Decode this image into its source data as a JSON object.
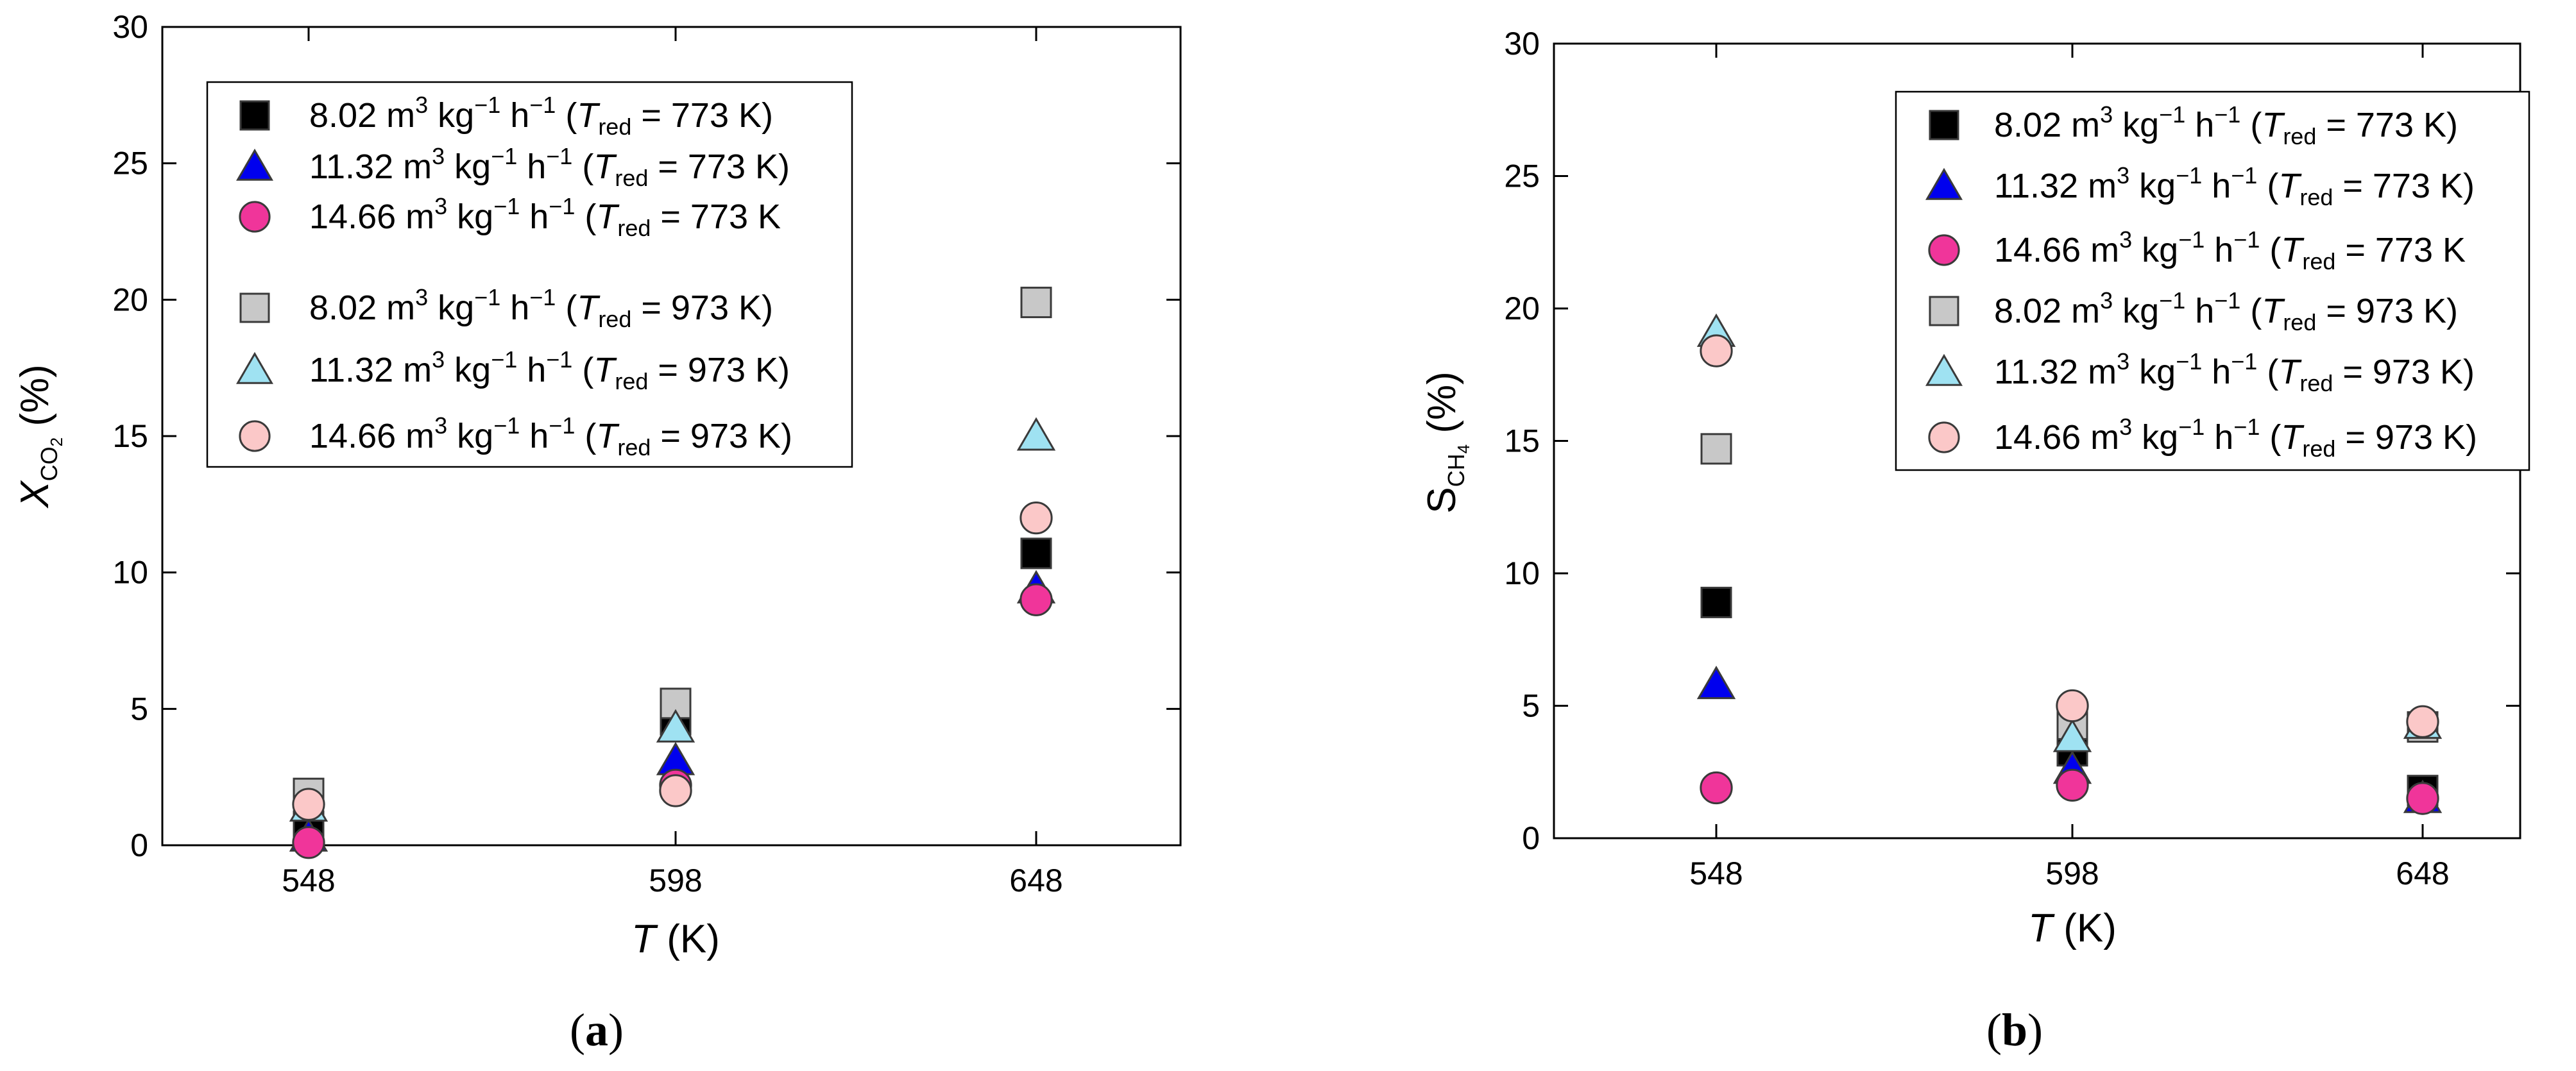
{
  "chart_data": [
    {
      "type": "scatter",
      "panel": "a",
      "caption_letter": "a",
      "ylabel": {
        "var": "X",
        "sub": "CO",
        "sub2": "2",
        "unit": "(%)"
      },
      "xlabel": {
        "var": "T",
        "unit": "(K)"
      },
      "categories": [
        "548",
        "598",
        "648"
      ],
      "yticks": [
        "0",
        "5",
        "10",
        "15",
        "20",
        "25",
        "30"
      ],
      "ylim": [
        0,
        30
      ],
      "series": [
        {
          "name": "8.02 m3 kg-1 h-1 (Tred = 773 K)",
          "flow": "8.02",
          "tred": "773 K)",
          "marker": "square",
          "fill": "#000000",
          "values": [
            0.7,
            4.6,
            10.7
          ]
        },
        {
          "name": "11.32 m3 kg-1 h-1 (Tred = 773 K)",
          "flow": "11.32",
          "tred": "773 K)",
          "marker": "triangle",
          "fill": "#0000ee",
          "values": [
            0.3,
            3.1,
            9.4
          ]
        },
        {
          "name": "14.66 m3 kg-1 h-1 (Tred = 773 K",
          "flow": "14.66",
          "tred": "773 K",
          "marker": "circle",
          "fill": "#f0359a",
          "values": [
            0.1,
            2.2,
            9.0
          ]
        },
        {
          "name": "8.02 m3 kg-1 h-1 (Tred = 973 K)",
          "flow": "8.02",
          "tred": "973 K)",
          "marker": "square",
          "fill": "#c8c8c8",
          "values": [
            1.9,
            5.2,
            19.9
          ]
        },
        {
          "name": "11.32 m3 kg-1 h-1 (Tred = 973 K)",
          "flow": "11.32",
          "tred": "973 K)",
          "marker": "triangle",
          "fill": "#9fe2f2",
          "values": [
            1.4,
            4.3,
            15.0
          ]
        },
        {
          "name": "14.66 m3 kg-1 h-1 (Tred = 973 K)",
          "flow": "14.66",
          "tred": "973 K)",
          "marker": "circle",
          "fill": "#fbc8c8",
          "values": [
            1.5,
            2.0,
            12.0
          ]
        }
      ]
    },
    {
      "type": "scatter",
      "panel": "b",
      "caption_letter": "b",
      "ylabel": {
        "var": "S",
        "sub": "CH",
        "sub2": "4",
        "unit": "(%)"
      },
      "xlabel": {
        "var": "T",
        "unit": "(K)"
      },
      "categories": [
        "548",
        "598",
        "648"
      ],
      "yticks": [
        "0",
        "5",
        "10",
        "15",
        "20",
        "25",
        "30"
      ],
      "ylim": [
        0,
        30
      ],
      "series": [
        {
          "name": "8.02 m3 kg-1 h-1 (Tred = 773 K)",
          "flow": "8.02",
          "tred": "773 K)",
          "marker": "square",
          "fill": "#000000",
          "values": [
            8.9,
            3.3,
            1.8
          ]
        },
        {
          "name": "11.32 m3 kg-1 h-1 (Tred = 773 K)",
          "flow": "11.32",
          "tred": "773 K)",
          "marker": "triangle",
          "fill": "#0000ee",
          "values": [
            5.8,
            2.6,
            1.5
          ]
        },
        {
          "name": "14.66 m3 kg-1 h-1 (Tred = 773 K",
          "flow": "14.66",
          "tred": "773 K",
          "marker": "circle",
          "fill": "#f0359a",
          "values": [
            1.9,
            2.0,
            1.5
          ]
        },
        {
          "name": "8.02 m3 kg-1 h-1 (Tred = 973 K)",
          "flow": "8.02",
          "tred": "973 K)",
          "marker": "square",
          "fill": "#c8c8c8",
          "values": [
            14.7,
            4.3,
            4.2
          ]
        },
        {
          "name": "11.32 m3 kg-1 h-1 (Tred = 973 K)",
          "flow": "11.32",
          "tred": "973 K)",
          "marker": "triangle",
          "fill": "#9fe2f2",
          "values": [
            19.1,
            3.8,
            4.3
          ]
        },
        {
          "name": "14.66 m3 kg-1 h-1 (Tred = 973 K)",
          "flow": "14.66",
          "tred": "973 K)",
          "marker": "circle",
          "fill": "#fbc8c8",
          "values": [
            18.4,
            5.0,
            4.4
          ]
        }
      ]
    }
  ],
  "legend_text": {
    "unit_m": "m",
    "sup3": "3",
    "kg": "kg",
    "supm1": "−1",
    "h": "h",
    "open": "(",
    "tvar": "T",
    "tsub": "red",
    "eq": "="
  }
}
